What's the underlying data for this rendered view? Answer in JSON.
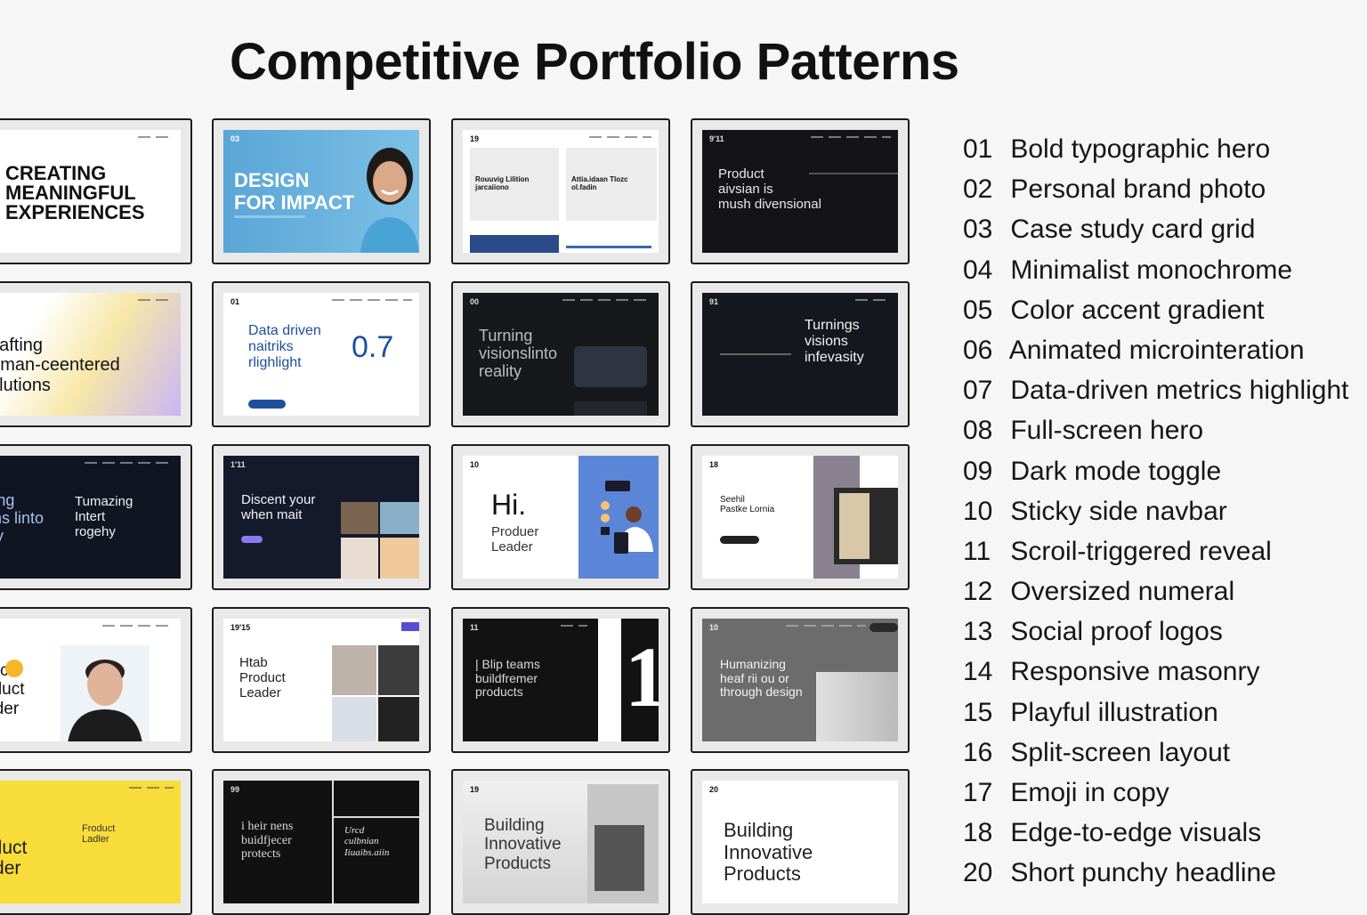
{
  "title": "Competitive Portfolio Patterns",
  "thumbnails": [
    {
      "headline": "CREATING\nMEANINGFUL\nEXPERIENCES"
    },
    {
      "num": "03",
      "headline": "DESIGN\nFOR IMPACT"
    },
    {
      "num": "19",
      "card_a": "Rouuvig Lilition\njarcaiiono",
      "card_b": "Attia.idaan Tlozc\nol.fadin"
    },
    {
      "num": "9'11",
      "headline": "Product\naivsian is\nmush divensional"
    },
    {
      "headline": "Crafting\nhuman-ceentered\nsolutions"
    },
    {
      "num": "01",
      "headline": "Data driven\nnaitriks\nrlighlight",
      "metric": "0.7"
    },
    {
      "num": "00",
      "headline": "Turning\nvisionslinto\nreality"
    },
    {
      "num": "91",
      "headline": "Turnings\nvisions\ninfevasity"
    },
    {
      "headline": "Turning\nvisions linto\nreality",
      "side": "Tumazing\nIntert\nrogehy"
    },
    {
      "num": "1'11",
      "headline": "Discent your\nwhen mait"
    },
    {
      "num": "10",
      "hi": "Hi.",
      "sub": "Produer\nLeader"
    },
    {
      "num": "18",
      "headline": "Seehil\nPastke Lornia"
    },
    {
      "headline": "Sonic\nProduct\nLeader"
    },
    {
      "num": "19'15",
      "headline": "Htab\nProduct\nLeader"
    },
    {
      "num": "11",
      "headline": "| Blip teams\nbuildfremer\nproducts",
      "big_num": "1"
    },
    {
      "num": "10",
      "headline": "Humanizing\nheaf rii ou or\nthrough design"
    },
    {
      "headline": "Hei\nProduct\nLeader",
      "side": "Froduct\nLadler"
    },
    {
      "num": "99",
      "headline": "i heir nens\nbuidfjecer\nprotects",
      "side": "Urcd\nculbnian\nIiuaibs.aiin"
    },
    {
      "num": "19",
      "headline": "Building\nInnovative\nProducts"
    },
    {
      "num": "20",
      "headline": "Building\nInnovative\nProducts"
    }
  ],
  "patterns": [
    {
      "n": "01",
      "label": "Bold typographic hero"
    },
    {
      "n": "02",
      "label": "Personal brand photo"
    },
    {
      "n": "03",
      "label": "Case study card grid"
    },
    {
      "n": "04",
      "label": "Minimalist monochrome"
    },
    {
      "n": "05",
      "label": "Color accent gradient"
    },
    {
      "n": "06",
      "label": "Animated microinteration"
    },
    {
      "n": "07",
      "label": "Data-driven metrics highlight"
    },
    {
      "n": "08",
      "label": "Full-screen hero"
    },
    {
      "n": "09",
      "label": "Dark mode toggle"
    },
    {
      "n": "10",
      "label": "Sticky side navbar"
    },
    {
      "n": "11",
      "label": "Scroil-triggered reveal"
    },
    {
      "n": "12",
      "label": "Oversized numeral"
    },
    {
      "n": "13",
      "label": "Social proof logos"
    },
    {
      "n": "14",
      "label": "Responsive masonry"
    },
    {
      "n": "15",
      "label": "Playful illustration"
    },
    {
      "n": "16",
      "label": "Split-screen layout"
    },
    {
      "n": "17",
      "label": "Emoji in copy"
    },
    {
      "n": "18",
      "label": "Edge-to-edge visuals"
    },
    {
      "n": "20",
      "label": "Short punchy headline"
    }
  ]
}
